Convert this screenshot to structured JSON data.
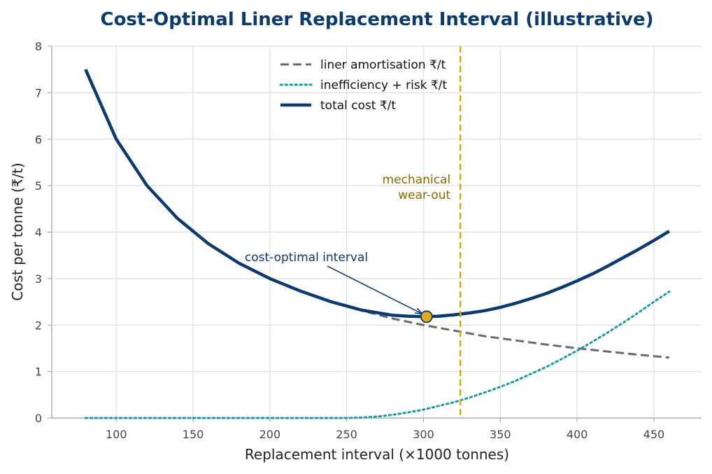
{
  "chart_data": {
    "type": "line",
    "title": "Cost-Optimal Liner Replacement Interval (illustrative)",
    "xlabel": "Replacement interval  (×1000 tonnes)",
    "ylabel": "Cost per tonne  (₹/t)",
    "xlim": [
      58,
      481
    ],
    "ylim": [
      0,
      8
    ],
    "xticks": [
      100,
      150,
      200,
      250,
      300,
      350,
      400,
      450
    ],
    "yticks": [
      0,
      1,
      2,
      3,
      4,
      5,
      6,
      7,
      8
    ],
    "grid": true,
    "legend_position": "top-center",
    "series": [
      {
        "name": "liner amortisation  ₹/t",
        "style": "dashed",
        "color": "#666b73",
        "x": [
          80,
          100,
          120,
          140,
          160,
          180,
          200,
          220,
          240,
          260,
          280,
          300,
          320,
          340,
          360,
          380,
          400,
          420,
          440,
          460
        ],
        "y": [
          7.5,
          6.0,
          5.0,
          4.29,
          3.75,
          3.33,
          3.0,
          2.73,
          2.5,
          2.31,
          2.14,
          2.0,
          1.88,
          1.76,
          1.67,
          1.58,
          1.5,
          1.43,
          1.36,
          1.3
        ]
      },
      {
        "name": "inefficiency + risk  ₹/t",
        "style": "dotted",
        "color": "#1a9ba0",
        "x": [
          80,
          100,
          150,
          200,
          250,
          260,
          270,
          280,
          290,
          300,
          310,
          320,
          330,
          340,
          350,
          360,
          370,
          380,
          390,
          400,
          410,
          420,
          430,
          440,
          450,
          460
        ],
        "y": [
          0,
          0,
          0,
          0,
          0,
          0.01,
          0.03,
          0.07,
          0.12,
          0.18,
          0.26,
          0.34,
          0.44,
          0.55,
          0.67,
          0.8,
          0.95,
          1.1,
          1.27,
          1.45,
          1.64,
          1.84,
          2.05,
          2.27,
          2.5,
          2.72
        ]
      },
      {
        "name": "total cost  ₹/t",
        "style": "solid",
        "color": "#0b3a6e",
        "x": [
          80,
          100,
          120,
          140,
          160,
          180,
          200,
          220,
          240,
          260,
          280,
          290,
          300,
          310,
          320,
          330,
          340,
          350,
          360,
          370,
          380,
          390,
          400,
          410,
          420,
          430,
          440,
          450,
          460
        ],
        "y": [
          7.5,
          6.0,
          5.0,
          4.29,
          3.75,
          3.33,
          3.0,
          2.73,
          2.5,
          2.32,
          2.21,
          2.19,
          2.18,
          2.19,
          2.22,
          2.26,
          2.31,
          2.38,
          2.47,
          2.57,
          2.68,
          2.81,
          2.95,
          3.1,
          3.27,
          3.45,
          3.63,
          3.82,
          4.02
        ]
      }
    ],
    "vline": {
      "x": 324,
      "color": "#e0a800",
      "label_lines": [
        "mechanical",
        "wear-out"
      ],
      "label_color": "#8a6a00"
    },
    "optimum": {
      "x": 302,
      "y": 2.18,
      "label": "cost-optimal interval",
      "label_color": "#0b3a6e",
      "marker_color": "#e8a91c"
    }
  },
  "colors": {
    "title": "#0b3a6e",
    "grid": "#dcdfe3",
    "axis": "#9aa3ab"
  }
}
